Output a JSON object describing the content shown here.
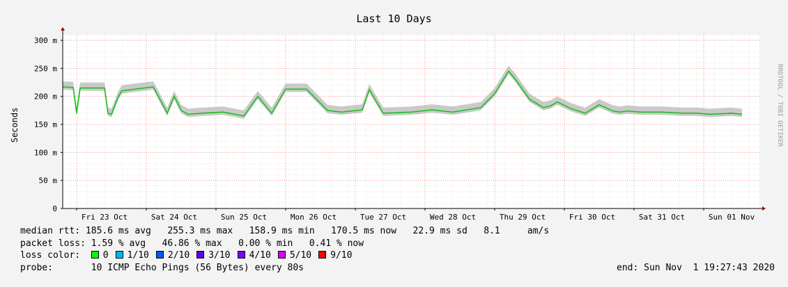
{
  "chart_data": {
    "type": "line",
    "title": "Last 10 Days",
    "ylabel": "Seconds",
    "xlabel": "",
    "ylim": [
      0,
      0.31
    ],
    "y_ticks": [
      {
        "value": 0,
        "label": "0"
      },
      {
        "value": 0.05,
        "label": "50 m"
      },
      {
        "value": 0.1,
        "label": "100 m"
      },
      {
        "value": 0.15,
        "label": "150 m"
      },
      {
        "value": 0.2,
        "label": "200 m"
      },
      {
        "value": 0.25,
        "label": "250 m"
      },
      {
        "value": 0.3,
        "label": "300 m"
      }
    ],
    "x_ticks": [
      "Fri 23 Oct",
      "Sat 24 Oct",
      "Sun 25 Oct",
      "Mon 26 Oct",
      "Tue 27 Oct",
      "Wed 28 Oct",
      "Thu 29 Oct",
      "Fri 30 Oct",
      "Sat 31 Oct",
      "Sun 01 Nov"
    ],
    "grid": true,
    "series": [
      {
        "name": "median rtt",
        "x_days": [
          0.0,
          0.15,
          0.2,
          0.25,
          0.3,
          0.6,
          0.65,
          0.7,
          0.8,
          0.85,
          1.3,
          1.5,
          1.6,
          1.7,
          1.8,
          2.0,
          2.3,
          2.6,
          2.8,
          3.0,
          3.2,
          3.5,
          3.8,
          4.0,
          4.3,
          4.4,
          4.6,
          5.0,
          5.3,
          5.6,
          6.0,
          6.2,
          6.4,
          6.5,
          6.7,
          6.9,
          7.0,
          7.1,
          7.3,
          7.5,
          7.7,
          7.9,
          8.0,
          8.1,
          8.3,
          8.6,
          8.9,
          9.1,
          9.3,
          9.6,
          9.75
        ],
        "values": [
          0.217,
          0.216,
          0.17,
          0.215,
          0.215,
          0.215,
          0.17,
          0.168,
          0.2,
          0.21,
          0.217,
          0.17,
          0.2,
          0.175,
          0.168,
          0.17,
          0.172,
          0.165,
          0.2,
          0.17,
          0.213,
          0.213,
          0.175,
          0.172,
          0.176,
          0.212,
          0.17,
          0.172,
          0.176,
          0.172,
          0.18,
          0.205,
          0.245,
          0.23,
          0.195,
          0.18,
          0.183,
          0.19,
          0.178,
          0.17,
          0.185,
          0.174,
          0.172,
          0.174,
          0.172,
          0.172,
          0.17,
          0.17,
          0.168,
          0.17,
          0.168
        ]
      }
    ]
  },
  "legend": {
    "median_rtt_label": "median rtt:",
    "median_rtt_text": "185.6 ms avg   255.3 ms max   158.9 ms min   170.5 ms now   22.9 ms sd   8.1     am/s",
    "packet_loss_label": "packet loss:",
    "packet_loss_text": "1.59 % avg   46.86 % max   0.00 % min   0.41 % now",
    "loss_color_label": "loss color:",
    "loss_colors": [
      {
        "label": "0",
        "color": "#00ff00"
      },
      {
        "label": "1/10",
        "color": "#00b8ff"
      },
      {
        "label": "2/10",
        "color": "#0059ff"
      },
      {
        "label": "3/10",
        "color": "#5e00ff"
      },
      {
        "label": "4/10",
        "color": "#7e00ff"
      },
      {
        "label": "5/10",
        "color": "#dd00ff"
      },
      {
        "label": "9/10",
        "color": "#ff0000"
      }
    ],
    "probe_label": "probe:",
    "probe_text": "10 ICMP Echo Pings (56 Bytes) every 80s",
    "end_text": "end: Sun Nov  1 19:27:43 2020"
  },
  "watermark": "RRDTOOL / TOBI OETIKER"
}
